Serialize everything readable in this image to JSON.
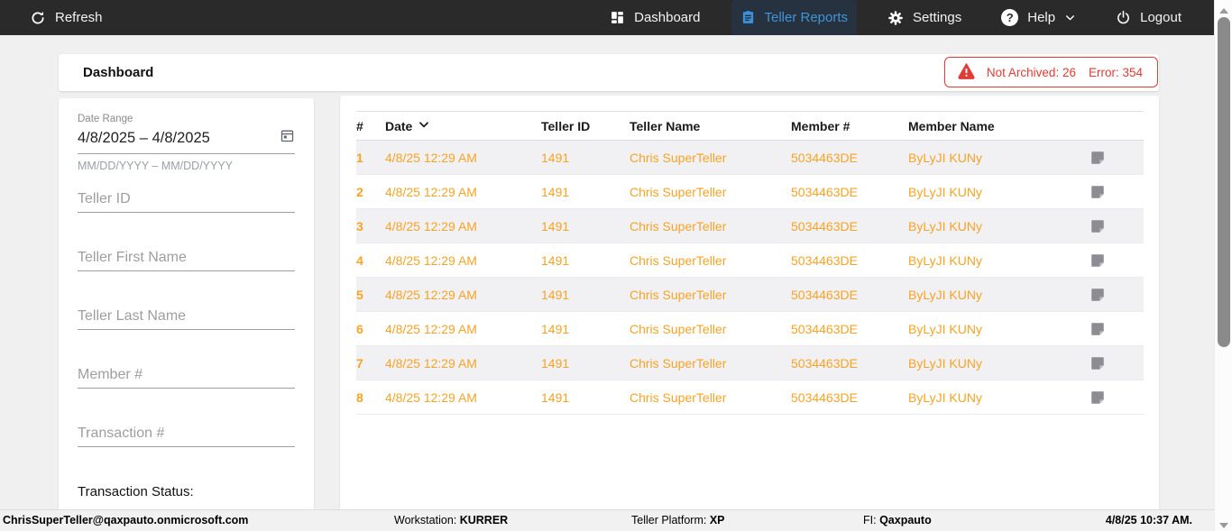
{
  "nav": {
    "refresh_label": "Refresh",
    "items": [
      {
        "label": "Dashboard"
      },
      {
        "label": "Teller Reports",
        "active": true
      },
      {
        "label": "Settings"
      },
      {
        "label": "Help"
      },
      {
        "label": "Logout"
      }
    ]
  },
  "header": {
    "title": "Dashboard",
    "alert": {
      "not_archived": "Not Archived: 26",
      "error": "Error: 354"
    }
  },
  "filters": {
    "date_range": {
      "label": "Date Range",
      "value": "4/8/2025 – 4/8/2025",
      "hint": "MM/DD/YYYY – MM/DD/YYYY"
    },
    "teller_id_placeholder": "Teller ID",
    "teller_first_name_placeholder": "Teller First Name",
    "teller_last_name_placeholder": "Teller Last Name",
    "member_number_placeholder": "Member #",
    "transaction_number_placeholder": "Transaction #",
    "transaction_status_label": "Transaction Status:"
  },
  "table": {
    "columns": [
      "#",
      "Date",
      "Teller ID",
      "Teller Name",
      "Member #",
      "Member Name"
    ],
    "rows": [
      {
        "num": "1",
        "date": "4/8/25 12:29 AM",
        "teller_id": "1491",
        "teller_name": "Chris SuperTeller",
        "member_number": "5034463DE",
        "member_name": "ByLyJI KUNy"
      },
      {
        "num": "2",
        "date": "4/8/25 12:29 AM",
        "teller_id": "1491",
        "teller_name": "Chris SuperTeller",
        "member_number": "5034463DE",
        "member_name": "ByLyJI KUNy"
      },
      {
        "num": "3",
        "date": "4/8/25 12:29 AM",
        "teller_id": "1491",
        "teller_name": "Chris SuperTeller",
        "member_number": "5034463DE",
        "member_name": "ByLyJI KUNy"
      },
      {
        "num": "4",
        "date": "4/8/25 12:29 AM",
        "teller_id": "1491",
        "teller_name": "Chris SuperTeller",
        "member_number": "5034463DE",
        "member_name": "ByLyJI KUNy"
      },
      {
        "num": "5",
        "date": "4/8/25 12:29 AM",
        "teller_id": "1491",
        "teller_name": "Chris SuperTeller",
        "member_number": "5034463DE",
        "member_name": "ByLyJI KUNy"
      },
      {
        "num": "6",
        "date": "4/8/25 12:29 AM",
        "teller_id": "1491",
        "teller_name": "Chris SuperTeller",
        "member_number": "5034463DE",
        "member_name": "ByLyJI KUNy"
      },
      {
        "num": "7",
        "date": "4/8/25 12:29 AM",
        "teller_id": "1491",
        "teller_name": "Chris SuperTeller",
        "member_number": "5034463DE",
        "member_name": "ByLyJI KUNy"
      },
      {
        "num": "8",
        "date": "4/8/25 12:29 AM",
        "teller_id": "1491",
        "teller_name": "Chris SuperTeller",
        "member_number": "5034463DE",
        "member_name": "ByLyJI KUNy"
      }
    ]
  },
  "status_bar": {
    "user_email": "ChrisSuperTeller@qaxpauto.onmicrosoft.com",
    "workstation_label": "Workstation: ",
    "workstation_value": "KURRER",
    "platform_label": "Teller Platform: ",
    "platform_value": "XP",
    "fi_label": "FI: ",
    "fi_value": "Qaxpauto",
    "datetime": "4/8/25 10:37 AM."
  },
  "colors": {
    "accent_orange": "#F7A325",
    "accent_blue": "#4193D6",
    "alert_red": "#E23B33",
    "nav_background": "#2A2A2A",
    "row_stripe": "#F1F1F3"
  }
}
